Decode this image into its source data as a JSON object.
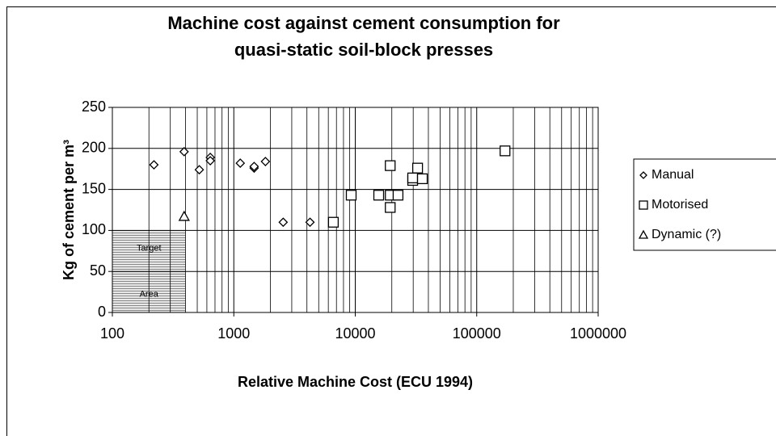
{
  "chart_data": {
    "type": "scatter",
    "title": "Machine cost against cement consumption for quasi-static soil-block presses",
    "x_label": "Relative Machine Cost (ECU 1994)",
    "y_label": "Kg of cement per m³",
    "xscale": "log",
    "xlim": [
      100,
      1000000
    ],
    "xticks": [
      100,
      1000,
      10000,
      100000,
      1000000
    ],
    "ylim": [
      0,
      250
    ],
    "yticks": [
      0,
      50,
      100,
      150,
      200,
      250
    ],
    "grid": true,
    "minor_grid": true,
    "legend": "right",
    "target_area": {
      "labels": [
        "Target",
        "Area"
      ],
      "x": [
        100,
        400
      ],
      "y": [
        0,
        100
      ]
    },
    "series": [
      {
        "name": "Manual",
        "marker": "diamond",
        "color": "#000000",
        "x": [
          220,
          390,
          520,
          640,
          640,
          1130,
          1470,
          1470,
          1820,
          2550,
          4240
        ],
        "values": [
          180,
          196,
          174,
          189,
          185,
          182,
          176,
          178,
          184,
          110,
          110
        ]
      },
      {
        "name": "Motorised",
        "marker": "square",
        "color": "#000000",
        "x": [
          6600,
          9260,
          15600,
          19400,
          19400,
          19400,
          22500,
          29700,
          29700,
          32600,
          35700,
          171000
        ],
        "values": [
          110,
          143,
          143,
          179,
          143,
          128,
          143,
          161,
          164,
          176,
          163,
          197
        ]
      },
      {
        "name": "Dynamic (?)",
        "marker": "triangle",
        "color": "#000000",
        "x": [
          390
        ],
        "values": [
          117
        ]
      }
    ]
  }
}
